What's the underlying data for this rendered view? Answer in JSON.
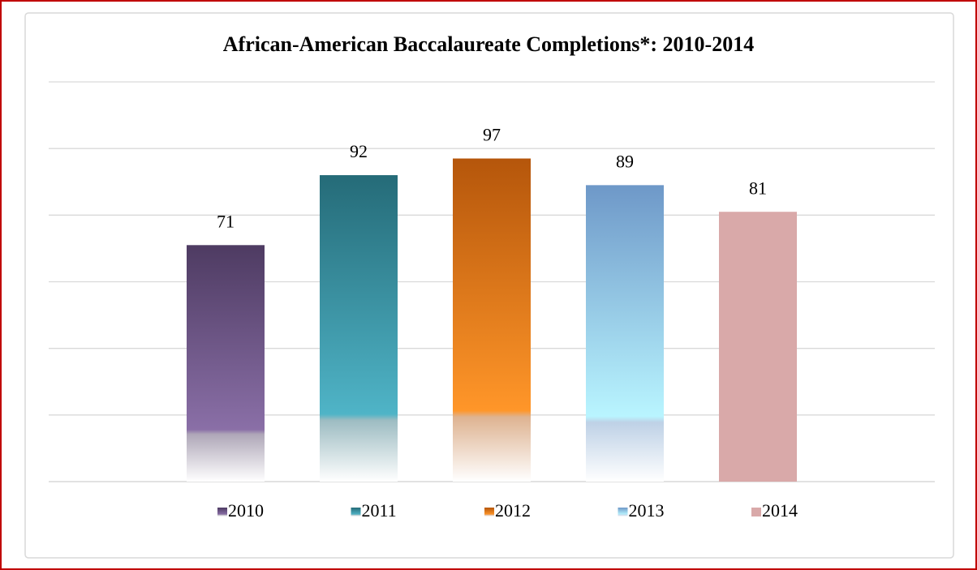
{
  "chart_data": {
    "type": "bar",
    "title": "African-American Baccalaureate Completions*: 2010-2014",
    "series": [
      {
        "name": "2010",
        "color": "#4e3b62",
        "fill": "gradient",
        "values": [
          71
        ]
      },
      {
        "name": "2011",
        "color": "#256b78",
        "fill": "gradient",
        "values": [
          92
        ]
      },
      {
        "name": "2012",
        "color": "#b5560b",
        "fill": "gradient",
        "values": [
          97
        ]
      },
      {
        "name": "2013",
        "color": "#6e98c8",
        "fill": "gradient",
        "values": [
          89
        ]
      },
      {
        "name": "2014",
        "color": "#d9a9a9",
        "fill": "solid",
        "values": [
          81
        ]
      }
    ],
    "ylim": [
      0,
      120
    ],
    "yticks": [
      0,
      20,
      40,
      60,
      80,
      100,
      120
    ],
    "grid": true,
    "legend": "bottom"
  }
}
